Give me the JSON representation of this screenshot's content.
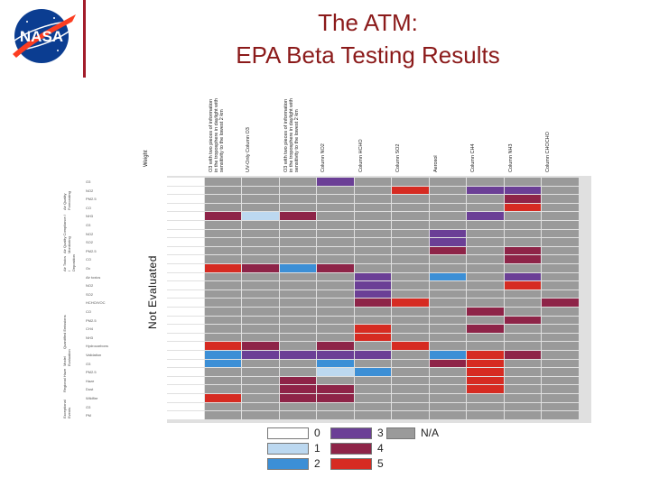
{
  "header": {
    "title_line1": "The ATM:",
    "title_line2": "EPA Beta Testing Results",
    "logo_text": "NASA"
  },
  "colors": {
    "title": "#8b1a1a",
    "level_0": "#ffffff",
    "level_1": "#bcd8f0",
    "level_2": "#3c8fd6",
    "level_3": "#6b3f96",
    "level_4": "#8e2448",
    "level_5": "#d62b22",
    "na": "#9a9a9a"
  },
  "table": {
    "weight_header": "Weight",
    "columns": [
      "O3 with two pieces of information in the troposphere in daylight with sensitivity to the lowest 2 km",
      "UV-Only Column O3",
      "O3 with two pieces of information in the troposphere in daylight with sensitivity to the lowest 2 km",
      "Column NO2",
      "Column HCHO",
      "Column SO2",
      "Aerosol",
      "Column CH4",
      "Column NH3",
      "Column CHOCHO"
    ],
    "not_evaluated": "Not Evaluated",
    "categories": [
      "Air Quality Forecasting",
      "Air Quality Compliance / Monitoring",
      "Air Toxics / Deposition",
      "Quantified Emissions",
      "Model Evaluation",
      "Regional Haze",
      "Exceptional Events"
    ],
    "row_labels": [
      "O3",
      "NO2",
      "PM2.5",
      "CO",
      "NH3",
      "O3",
      "NO2",
      "SO2",
      "PM2.5",
      "CO",
      "Ox",
      "Air toxics",
      "NO2",
      "SO2",
      "HCHO/VOC",
      "CO",
      "PM2.5",
      "CH4",
      "NH3",
      "Hydrocarbons",
      "Validation",
      "O3",
      "PM2.5",
      "Haze",
      "Dust",
      "Wildfire",
      "O3",
      "PM"
    ],
    "grid": [
      [
        0,
        "na",
        "na",
        "na",
        3,
        "na",
        "na",
        "na",
        "na",
        "na",
        "na"
      ],
      [
        0,
        "na",
        "na",
        "na",
        "na",
        "na",
        5,
        "na",
        3,
        3,
        "na"
      ],
      [
        0,
        "na",
        "na",
        "na",
        "na",
        "na",
        "na",
        "na",
        "na",
        4,
        "na"
      ],
      [
        0,
        "na",
        "na",
        "na",
        "na",
        "na",
        "na",
        "na",
        "na",
        5,
        "na"
      ],
      [
        0,
        4,
        1,
        4,
        "na",
        "na",
        "na",
        "na",
        3,
        "na",
        "na"
      ],
      [
        0,
        "na",
        "na",
        "na",
        "na",
        "na",
        "na",
        "na",
        "na",
        "na",
        "na"
      ],
      [
        0,
        "na",
        "na",
        "na",
        "na",
        "na",
        "na",
        3,
        "na",
        "na",
        "na"
      ],
      [
        0,
        "na",
        "na",
        "na",
        "na",
        "na",
        "na",
        3,
        "na",
        "na",
        "na"
      ],
      [
        0,
        "na",
        "na",
        "na",
        "na",
        "na",
        "na",
        4,
        "na",
        4,
        "na"
      ],
      [
        0,
        "na",
        "na",
        "na",
        "na",
        "na",
        "na",
        "na",
        "na",
        4,
        "na"
      ],
      [
        0,
        5,
        4,
        2,
        4,
        "na",
        "na",
        "na",
        "na",
        "na",
        "na"
      ],
      [
        0,
        "na",
        "na",
        "na",
        "na",
        3,
        "na",
        2,
        "na",
        3,
        "na"
      ],
      [
        0,
        "na",
        "na",
        "na",
        "na",
        3,
        "na",
        "na",
        "na",
        5,
        "na"
      ],
      [
        0,
        "na",
        "na",
        "na",
        "na",
        3,
        "na",
        "na",
        "na",
        "na",
        "na"
      ],
      [
        0,
        "na",
        "na",
        "na",
        "na",
        4,
        5,
        "na",
        "na",
        "na",
        4
      ],
      [
        0,
        "na",
        "na",
        "na",
        "na",
        "na",
        "na",
        "na",
        4,
        "na",
        "na"
      ],
      [
        0,
        "na",
        "na",
        "na",
        "na",
        "na",
        "na",
        "na",
        "na",
        4,
        "na"
      ],
      [
        0,
        "na",
        "na",
        "na",
        "na",
        5,
        "na",
        "na",
        4,
        "na",
        "na"
      ],
      [
        0,
        "na",
        "na",
        "na",
        "na",
        5,
        "na",
        "na",
        "na",
        "na",
        "na"
      ],
      [
        0,
        5,
        4,
        "na",
        4,
        "na",
        5,
        "na",
        "na",
        "na",
        "na"
      ],
      [
        0,
        2,
        3,
        3,
        3,
        3,
        "na",
        2,
        5,
        4,
        "na"
      ],
      [
        0,
        2,
        "na",
        "na",
        2,
        "na",
        "na",
        4,
        5,
        "na",
        "na"
      ],
      [
        0,
        "na",
        "na",
        "na",
        1,
        2,
        "na",
        "na",
        5,
        "na",
        "na"
      ],
      [
        0,
        "na",
        "na",
        4,
        "na",
        "na",
        "na",
        "na",
        5,
        "na",
        "na"
      ],
      [
        0,
        "na",
        "na",
        4,
        4,
        "na",
        "na",
        "na",
        5,
        "na",
        "na"
      ],
      [
        0,
        5,
        "na",
        4,
        4,
        "na",
        "na",
        "na",
        "na",
        "na",
        "na"
      ],
      [
        0,
        "na",
        "na",
        "na",
        "na",
        "na",
        "na",
        "na",
        "na",
        "na",
        "na"
      ],
      [
        0,
        "na",
        "na",
        "na",
        "na",
        "na",
        "na",
        "na",
        "na",
        "na",
        "na"
      ]
    ]
  },
  "legend": [
    {
      "label": "0",
      "color": "#ffffff"
    },
    {
      "label": "1",
      "color": "#bcd8f0"
    },
    {
      "label": "2",
      "color": "#3c8fd6"
    },
    {
      "label": "3",
      "color": "#6b3f96"
    },
    {
      "label": "4",
      "color": "#8e2448"
    },
    {
      "label": "5",
      "color": "#d62b22"
    },
    {
      "label": "N/A",
      "color": "#9a9a9a"
    }
  ]
}
